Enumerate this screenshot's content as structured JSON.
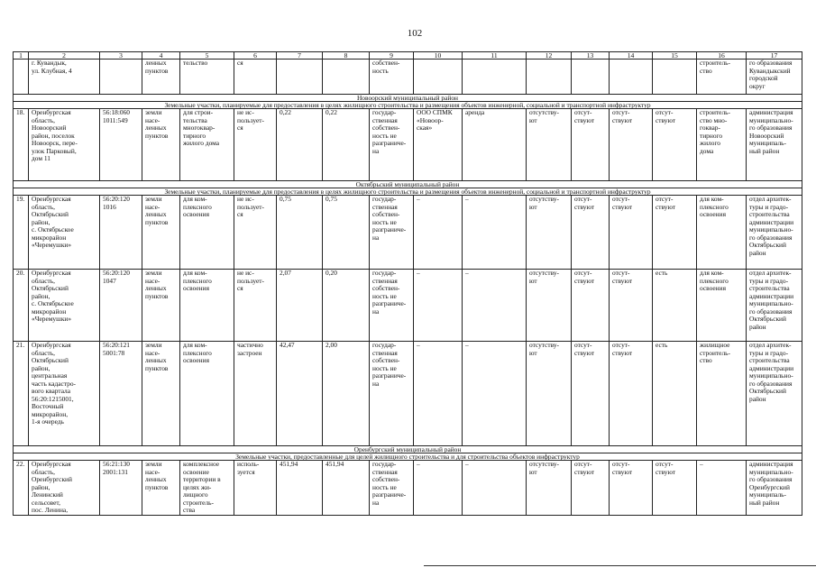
{
  "page_number": "102",
  "header": [
    "1",
    "2",
    "3",
    "4",
    "5",
    "6",
    "7",
    "8",
    "9",
    "10",
    "11",
    "12",
    "13",
    "14",
    "15",
    "16",
    "17"
  ],
  "blocks": [
    {
      "type": "row",
      "height": 39,
      "cells": [
        "",
        "г.        Кувандык,\nул. Клубная, 4",
        "",
        "ленных\nпунктов",
        "тельство",
        "ся",
        "",
        "",
        "собствен-\nность",
        "",
        "",
        "",
        "",
        "",
        "",
        "строитель-\nство",
        "го образования\nКувандыкский\nгородской\nокруг"
      ]
    },
    {
      "type": "section",
      "text": "Новоорский муниципальный район"
    },
    {
      "type": "section",
      "text": "Земельные участки, планируемые для предоставления в целях жилищного строительства и размещения объектов инженерной, социальной и транспортной инфраструктур"
    },
    {
      "type": "row",
      "height": 80,
      "cells": [
        "18.",
        "Оренбургская\nобласть,\nНовоорский\nрайон,   поселок\nНовоорск,  пере-\nулок  Парковый,\nдом 11",
        "56:18:060\n1011:549",
        "земли\nнасе-\nленных\nпунктов",
        "для      строи-\nтельства\nмногоквар-\nтирного\nжилого дома",
        "не      ис-\nпользует-\nся",
        "0,22",
        "0,22",
        "государ-\nственная\nсобствен-\nность       не\nразграниче-\nна",
        "ООО  СПМК\n«Новоор-\nская»",
        "аренда",
        "отсутству-\nют",
        "отсут-\nствуют",
        "отсут-\nствуют",
        "отсут-\nствуют",
        "строитель-\nство  мно-\nгоквар-\nтирного\nжилого\nдома",
        "администрация\nмуниципально-\nго образования\nНовоорский\nмуниципаль-\nный район"
      ]
    },
    {
      "type": "section",
      "text": "Октябрьский муниципальный район"
    },
    {
      "type": "section",
      "text": "Земельные участки, планируемые для предоставления в целях жилищного строительства и размещения объектов инженерной, социальной и транспортной инфраструктур"
    },
    {
      "type": "row",
      "height": 82,
      "cells": [
        "19.",
        "Оренбургская\nобласть,\nОктябрьский\nрайон,\nс.   Октябрьское\nмикрорайон\n«Черемушки»",
        "56:20:120\n1016",
        "земли\nнасе-\nленных\nпунктов",
        "для        ком-\nплексного\nосвоения",
        "не      ис-\nпользует-\nся",
        "0,75",
        "0,75",
        "государ-\nственная\nсобствен-\nность       не\nразграниче-\nна",
        "–",
        "–",
        "отсутству-\nют",
        "отсут-\nствуют",
        "отсут-\nствуют",
        "отсут-\nствуют",
        "для     ком-\nплексного\nосвоения",
        "отдел архитек-\nтуры  и  градо-\nстроительства\nадминистрации\nмуниципально-\nго образования\nОктябрьский\nрайон"
      ]
    },
    {
      "type": "row",
      "height": 80,
      "cells": [
        "20.",
        "Оренбургская\nобласть,\nОктябрьский\nрайон,\nс.   Октябрьское\nмикрорайон\n«Черемушки»",
        "56:20:120\n1047",
        "земли\nнасе-\nленных\nпунктов",
        "для        ком-\nплексного\nосвоения",
        "не      ис-\nпользует-\nся",
        "2,07",
        "0,20",
        "государ-\nственная\nсобствен-\nность       не\nразграниче-\nна",
        "–",
        "–",
        "отсутству-\nют",
        "отсут-\nствуют",
        "отсут-\nствуют",
        "есть",
        "для     ком-\nплексного\nосвоения",
        "отдел архитек-\nтуры  и  градо-\nстроительства\nадминистрации\nмуниципально-\nго образования\nОктябрьский\nрайон"
      ]
    },
    {
      "type": "row",
      "height": 116,
      "cells": [
        "21.",
        "Оренбургская\nобласть,\nОктябрьский\nрайон,\nцентральная\nчасть  кадастро-\nвого     квартала\n56:20:1215001,\nВосточный\nмикрорайон,\n1-я очередь",
        "56:20:121\n5001:78",
        "земли\nнасе-\nленных\nпунктов",
        "для        ком-\nплексного\nосвоения",
        "частично\nзастроен",
        "42,47",
        "2,00",
        "государ-\nственная\nсобствен-\nность       не\nразграниче-\nна",
        "–",
        "–",
        "отсутству-\nют",
        "отсут-\nствуют",
        "отсут-\nствуют",
        "есть",
        "жилищное\nстроитель-\nство",
        "отдел архитек-\nтуры  и  градо-\nстроительства\nадминистрации\nмуниципально-\nго образования\nОктябрьский\nрайон"
      ]
    },
    {
      "type": "section",
      "text": "Оренбургский муниципальный район"
    },
    {
      "type": "section",
      "text": "Земельные участки, предоставленные для целей жилищного строительства и для строительства объектов инфраструктур"
    },
    {
      "type": "row",
      "height": 56,
      "cells": [
        "22.",
        "Оренбургская\nобласть,\nОренбургский\nрайон,\nЛенинский\nсельсовет,\nпос.        Ленина,",
        "56:21:130\n2001:131",
        "земли\nнасе-\nленных\nпунктов",
        "комплексное\nосвоение\nтерритории  в\nцелях      жи-\nлищного\nстроитель-\nства",
        "исполь-\nзуется",
        "451,94",
        "451,94",
        "государ-\nственная\nсобствен-\nность       не\nразграниче-\nна",
        "–",
        "–",
        "отсутству-\nют",
        "отсут-\nствуют",
        "отсут-\nствуют",
        "отсут-\nствуют",
        "–",
        "администрация\nмуниципально-\nго образования\nОренбургский\nмуниципаль-\nный район"
      ]
    }
  ]
}
